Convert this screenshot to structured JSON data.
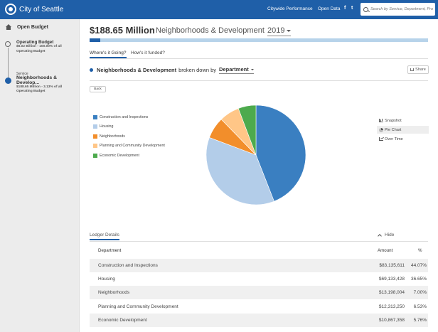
{
  "header": {
    "logo_text": "City of Seattle",
    "nav": [
      "Citywide Performance",
      "Open Data"
    ],
    "social": [
      "f",
      "t"
    ],
    "search_placeholder": "Search by Service, Department, Pro"
  },
  "sidebar": {
    "home_label": "Open Budget",
    "items": [
      {
        "title": "Operating Budget",
        "line1": "$6.02 Billion - 100.00% of all",
        "line2": "Operating Budget"
      },
      {
        "kind": "Service",
        "title": "Neighborhoods & Develop...",
        "line1": "$188.65 Million - 3.13% of all",
        "line2": "Operating Budget"
      }
    ]
  },
  "main": {
    "amount": "$188.65 Million",
    "heading": "Neighborhoods & Development",
    "year": "2019",
    "budget_share_percent": 3.13,
    "tabs": [
      "Where's it Going?",
      "How's it funded?"
    ],
    "breakdown": {
      "title": "Neighborhoods & Development",
      "mid": "broken down by",
      "dimension": "Department"
    },
    "share_label": "Share",
    "back_label": "Back",
    "views": [
      "Snapshot",
      "Pie Chart",
      "Over Time"
    ],
    "active_view": "Pie Chart",
    "ledger_label": "Ledger Details",
    "hide_label": "Hide",
    "table": {
      "columns": [
        "Department",
        "Amount",
        "%"
      ],
      "rows": [
        [
          "Construction and Inspections",
          "$83,135,611",
          "44.07%"
        ],
        [
          "Housing",
          "$69,133,428",
          "36.65%"
        ],
        [
          "Neighborhoods",
          "$13,198,004",
          "7.00%"
        ],
        [
          "Planning and Community Development",
          "$12,313,250",
          "6.53%"
        ],
        [
          "Economic Development",
          "$10,867,358",
          "5.76%"
        ]
      ]
    }
  },
  "colors": {
    "brand": "#1f5fa8",
    "slices": [
      "#3a7fc1",
      "#b3cde9",
      "#f28e2b",
      "#ffc687",
      "#4daa4d"
    ]
  },
  "chart_data": {
    "type": "pie",
    "categories": [
      "Construction and Inspections",
      "Housing",
      "Neighborhoods",
      "Planning and Community Development",
      "Economic Development"
    ],
    "values": [
      44.07,
      36.65,
      7.0,
      6.53,
      5.76
    ],
    "colors": [
      "#3a7fc1",
      "#b3cde9",
      "#f28e2b",
      "#ffc687",
      "#4daa4d"
    ],
    "legend": "left"
  }
}
